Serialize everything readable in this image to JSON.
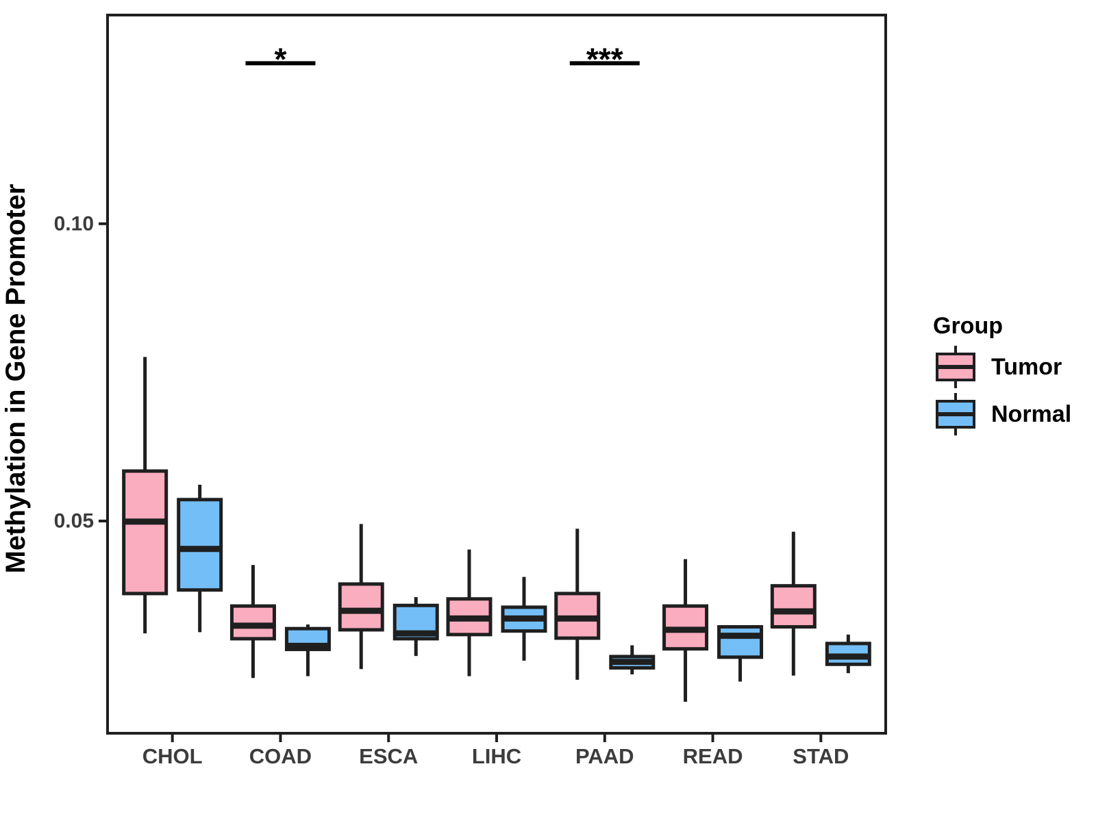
{
  "chart_data": {
    "type": "boxplot",
    "title": "",
    "xlabel": "",
    "ylabel": "Methylation in Gene Promoter",
    "categories": [
      "CHOL",
      "COAD",
      "ESCA",
      "LIHC",
      "PAAD",
      "READ",
      "STAD"
    ],
    "yticks": [
      {
        "value": 0.05,
        "label": "0.05"
      },
      {
        "value": 0.1,
        "label": "0.10"
      }
    ],
    "ylim": [
      0.0143,
      0.1351
    ],
    "grid": "off",
    "legend": {
      "title": "Group",
      "position": "right",
      "entries": [
        {
          "label": "Tumor",
          "color": "#FBADC0"
        },
        {
          "label": "Normal",
          "color": "#74BEF7"
        }
      ]
    },
    "series": [
      {
        "name": "Tumor",
        "color": "#FBADC0",
        "boxes": [
          {
            "category": "CHOL",
            "whisker_low": 0.0311,
            "q1": 0.0378,
            "median": 0.0499,
            "q3": 0.0584,
            "whisker_high": 0.0776
          },
          {
            "category": "COAD",
            "whisker_low": 0.0236,
            "q1": 0.0302,
            "median": 0.0324,
            "q3": 0.0357,
            "whisker_high": 0.0426
          },
          {
            "category": "ESCA",
            "whisker_low": 0.0251,
            "q1": 0.0317,
            "median": 0.0349,
            "q3": 0.0394,
            "whisker_high": 0.0495
          },
          {
            "category": "LIHC",
            "whisker_low": 0.0239,
            "q1": 0.0309,
            "median": 0.0336,
            "q3": 0.0369,
            "whisker_high": 0.0452
          },
          {
            "category": "PAAD",
            "whisker_low": 0.0233,
            "q1": 0.0303,
            "median": 0.0336,
            "q3": 0.0378,
            "whisker_high": 0.0487
          },
          {
            "category": "READ",
            "whisker_low": 0.0196,
            "q1": 0.0285,
            "median": 0.0317,
            "q3": 0.0357,
            "whisker_high": 0.0436
          },
          {
            "category": "STAD",
            "whisker_low": 0.024,
            "q1": 0.0322,
            "median": 0.0348,
            "q3": 0.0391,
            "whisker_high": 0.0482
          }
        ]
      },
      {
        "name": "Normal",
        "color": "#74BEF7",
        "boxes": [
          {
            "category": "CHOL",
            "whisker_low": 0.0313,
            "q1": 0.0384,
            "median": 0.0453,
            "q3": 0.0536,
            "whisker_high": 0.0561
          },
          {
            "category": "COAD",
            "whisker_low": 0.0239,
            "q1": 0.0284,
            "median": 0.029,
            "q3": 0.0319,
            "whisker_high": 0.0326
          },
          {
            "category": "ESCA",
            "whisker_low": 0.0273,
            "q1": 0.0302,
            "median": 0.0311,
            "q3": 0.0358,
            "whisker_high": 0.0372
          },
          {
            "category": "LIHC",
            "whisker_low": 0.0265,
            "q1": 0.0315,
            "median": 0.0336,
            "q3": 0.0355,
            "whisker_high": 0.0406
          },
          {
            "category": "PAAD",
            "whisker_low": 0.0242,
            "q1": 0.0253,
            "median": 0.0263,
            "q3": 0.0272,
            "whisker_high": 0.0291
          },
          {
            "category": "READ",
            "whisker_low": 0.023,
            "q1": 0.0271,
            "median": 0.0307,
            "q3": 0.0322,
            "whisker_high": 0.0322
          },
          {
            "category": "STAD",
            "whisker_low": 0.0244,
            "q1": 0.0259,
            "median": 0.0272,
            "q3": 0.0294,
            "whisker_high": 0.0309
          }
        ]
      }
    ],
    "annotations": [
      {
        "category": "COAD",
        "label": "*",
        "line_y": 0.127
      },
      {
        "category": "PAAD",
        "label": "***",
        "line_y": 0.127
      }
    ],
    "colors": {
      "tumor_fill": "#FBADC0",
      "normal_fill": "#74BEF7",
      "box_stroke": "#1F1F1F",
      "panel_border": "#1F1F1F",
      "axis_text": "#3C3C3C",
      "title_text": "#000000",
      "background": "#FFFFFF"
    }
  }
}
